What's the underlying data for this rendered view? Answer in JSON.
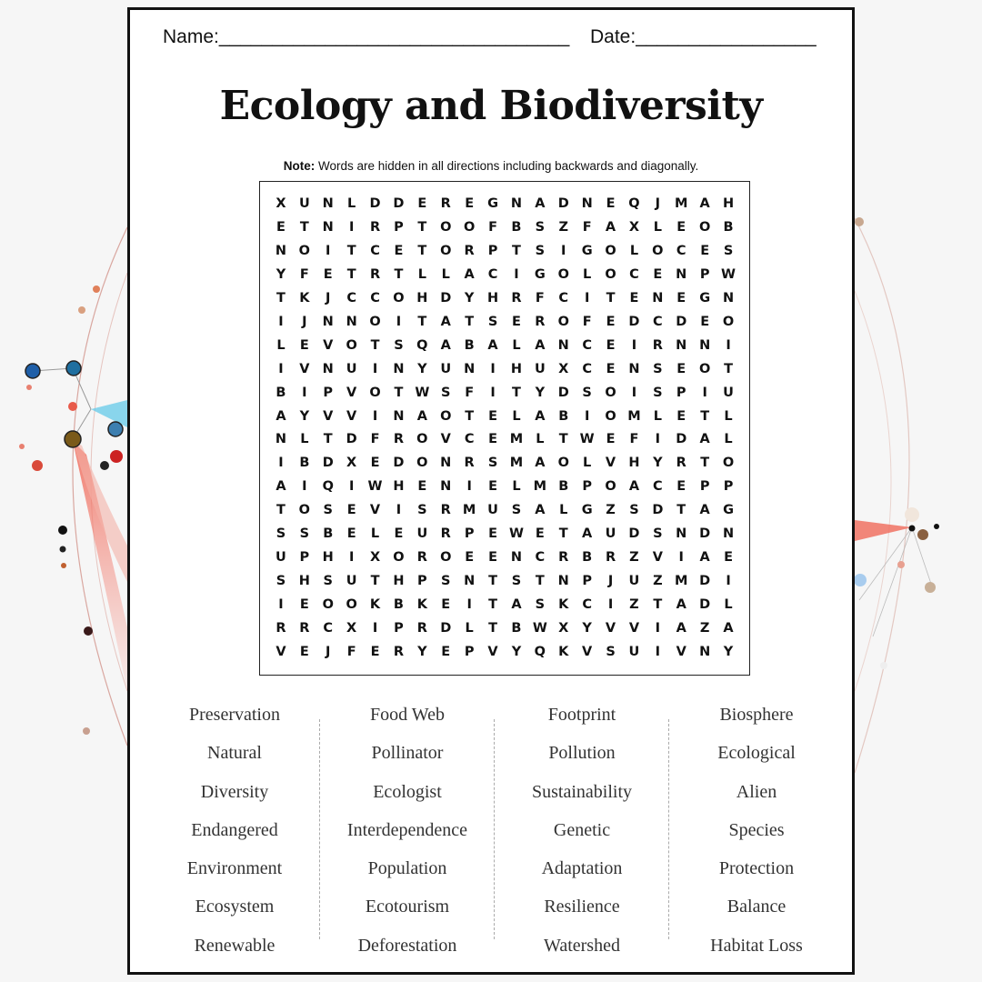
{
  "header": {
    "name_label": "Name:_________________________________",
    "date_label": "Date:_________________"
  },
  "title": "Ecology and Biodiversity",
  "note": {
    "bold": "Note:",
    "text": " Words are hidden in all directions including backwards and diagonally."
  },
  "grid_rows": [
    "XUNLDDEREGNADNEQJMAH",
    "ETNIRPTOOFBSZFAXLEOB",
    "NOITCETORPTSIGOLOCES",
    "YFETRTLLACIGOLOCENPW",
    "TKJCCOHDYHRFCITENEGN",
    "IJNNOITATSEROFEDCDEO",
    "LEVOTSQABALANCEIRNNI",
    "IVNUINYUNIHUXCENSEOT",
    "BIPVOTWSFITYDSOISPIU",
    "AYVVINAOTELABIOMLETL",
    "NLTDFROVCEMLTWEFIDAL",
    "IBDXEDONRSMAOLVHYRTO",
    "AIQIWHENIELMBPOACEPP",
    "TOSEVISRMUSALGZSDTAG",
    "SSBELEURPEWETAUDSNDN",
    "UPHIXOROEENCRBRZVIAE",
    "SHSUTHPSNTSTNPJUZMDI",
    "IEOOKBKEITASKCIZTADL",
    "RRCXIPRDLTBWXYVVIAZA",
    "VEJFERYEPVYQKVSUIVNY"
  ],
  "word_columns": [
    [
      "Preservation",
      "Natural",
      "Diversity",
      "Endangered",
      "Environment",
      "Ecosystem",
      "Renewable"
    ],
    [
      "Food Web",
      "Pollinator",
      "Ecologist",
      "Interdependence",
      "Population",
      "Ecotourism",
      "Deforestation"
    ],
    [
      "Footprint",
      "Pollution",
      "Sustainability",
      "Genetic",
      "Adaptation",
      "Resilience",
      "Watershed"
    ],
    [
      "Biosphere",
      "Ecological",
      "Alien",
      "Species",
      "Protection",
      "Balance",
      "Habitat Loss"
    ]
  ],
  "colors": {
    "accent_red": "#e8584a",
    "node_blue": "#1f5fa8",
    "node_brown": "#7a5a1a",
    "border": "#111111"
  }
}
